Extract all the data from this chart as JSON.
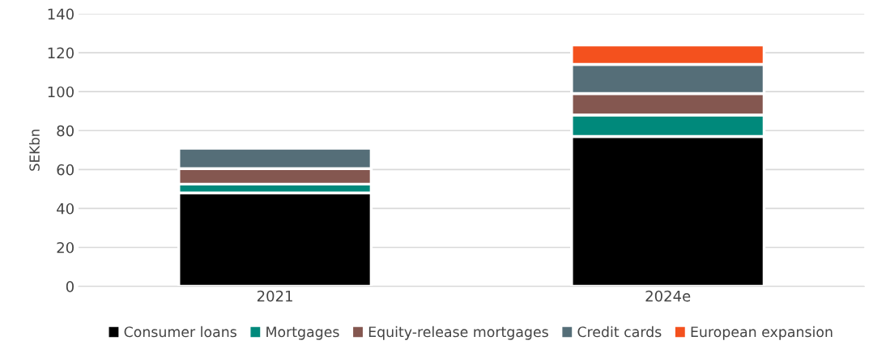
{
  "chart_data": {
    "type": "bar",
    "stacked": true,
    "ylabel": "SEKbn",
    "categories": [
      "2021",
      "2024e"
    ],
    "series": [
      {
        "name": "Consumer loans",
        "color": "#000000",
        "values": [
          48,
          77
        ]
      },
      {
        "name": "Mortgages",
        "color": "#00897b",
        "values": [
          4.5,
          11
        ]
      },
      {
        "name": "Equity-release mortgages",
        "color": "#845750",
        "values": [
          8,
          11
        ]
      },
      {
        "name": "Credit cards",
        "color": "#556e78",
        "values": [
          10.5,
          15
        ]
      },
      {
        "name": "European expansion",
        "color": "#f4511e",
        "values": [
          null,
          10
        ]
      }
    ],
    "ylim": [
      0,
      140
    ],
    "yticks": [
      0,
      20,
      40,
      60,
      80,
      100,
      120,
      140
    ],
    "grid": "y",
    "legend": "bottom"
  }
}
